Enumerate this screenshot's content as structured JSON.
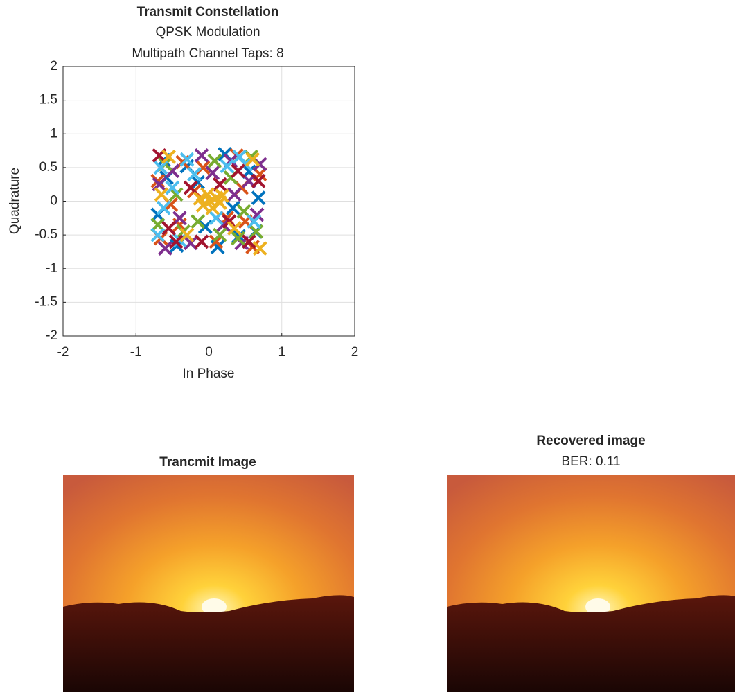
{
  "chart_data": [
    {
      "type": "scatter",
      "title": "Transmit Constellation",
      "subtitle": [
        "QPSK Modulation",
        "Multipath Channel Taps: 8"
      ],
      "x_label": "In Phase",
      "y_label": "Quadrature",
      "xlim": [
        -2,
        2
      ],
      "ylim": [
        -2,
        2
      ],
      "xticks": [
        -2,
        -1,
        0,
        1,
        2
      ],
      "yticks": [
        -2,
        -1.5,
        -1,
        -0.5,
        0,
        0.5,
        1,
        1.5,
        2
      ],
      "grid": true,
      "series": [
        {
          "color": "#0072BD",
          "x": [
            -0.62,
            0.41,
            -0.15,
            0.68,
            -0.44,
            0.22,
            -0.7,
            0.55,
            -0.05,
            0.33,
            -0.58,
            0.12,
            0.64,
            -0.3
          ],
          "values": [
            0.61,
            -0.52,
            0.28,
            0.05,
            -0.66,
            0.7,
            -0.2,
            0.44,
            -0.38,
            -0.1,
            0.35,
            -0.68,
            -0.45,
            0.52
          ]
        },
        {
          "color": "#D95319",
          "x": [
            0.5,
            -0.36,
            0.7,
            -0.66,
            0.1,
            -0.2,
            0.38,
            -0.52,
            0.6,
            -0.08,
            0.25,
            -0.7,
            0.45,
            -0.4
          ],
          "values": [
            -0.3,
            0.58,
            0.4,
            -0.55,
            -0.6,
            0.15,
            0.68,
            -0.05,
            -0.68,
            0.5,
            -0.25,
            0.3,
            0.2,
            -0.35
          ]
        },
        {
          "color": "#7E2F8E",
          "x": [
            -0.5,
            0.3,
            -0.25,
            0.66,
            -0.68,
            0.45,
            0.05,
            -0.4,
            0.2,
            0.55,
            -0.1,
            -0.6,
            0.7,
            0.35
          ],
          "values": [
            0.45,
            0.6,
            -0.62,
            -0.2,
            0.25,
            -0.62,
            0.42,
            -0.25,
            -0.35,
            0.3,
            0.68,
            -0.7,
            0.55,
            0.1
          ]
        },
        {
          "color": "#77AC30",
          "x": [
            -0.35,
            0.48,
            0.15,
            -0.6,
            0.65,
            -0.15,
            0.3,
            -0.45,
            0.58,
            -0.7,
            0.08,
            0.4
          ],
          "values": [
            -0.45,
            -0.15,
            -0.5,
            0.55,
            -0.45,
            -0.3,
            0.35,
            0.1,
            0.66,
            -0.35,
            0.6,
            -0.55
          ]
        },
        {
          "color": "#4DBEEE",
          "x": [
            -0.66,
            -0.5,
            -0.3,
            0.5,
            -0.62,
            0.25,
            -0.4,
            0.62,
            -0.2,
            0.1,
            -0.7,
            0.42
          ],
          "values": [
            0.5,
            0.2,
            0.62,
            0.55,
            -0.1,
            0.52,
            -0.58,
            -0.3,
            0.4,
            -0.25,
            -0.5,
            0.66
          ]
        },
        {
          "color": "#A2142F",
          "x": [
            0.55,
            -0.45,
            0.28,
            -0.68,
            0.68,
            -0.1,
            0.15,
            -0.55,
            0.4,
            -0.25
          ],
          "values": [
            -0.6,
            -0.6,
            -0.3,
            0.68,
            0.3,
            -0.6,
            0.25,
            -0.4,
            0.45,
            0.2
          ]
        },
        {
          "color": "#EDB120",
          "x": [
            0.02,
            0.1,
            -0.08,
            0.15,
            -0.02,
            0.05,
            -0.12,
            0.18,
            0.6,
            -0.55,
            0.35,
            -0.3,
            0.7,
            -0.65
          ],
          "values": [
            0.0,
            0.05,
            -0.06,
            -0.02,
            0.1,
            -0.1,
            0.04,
            0.08,
            0.62,
            0.66,
            -0.4,
            -0.5,
            -0.7,
            0.1
          ]
        }
      ]
    },
    {
      "type": "image",
      "title": "Trancmit Image"
    },
    {
      "type": "image",
      "title": "Recovered image",
      "subtitle": "BER: 0.11"
    }
  ]
}
